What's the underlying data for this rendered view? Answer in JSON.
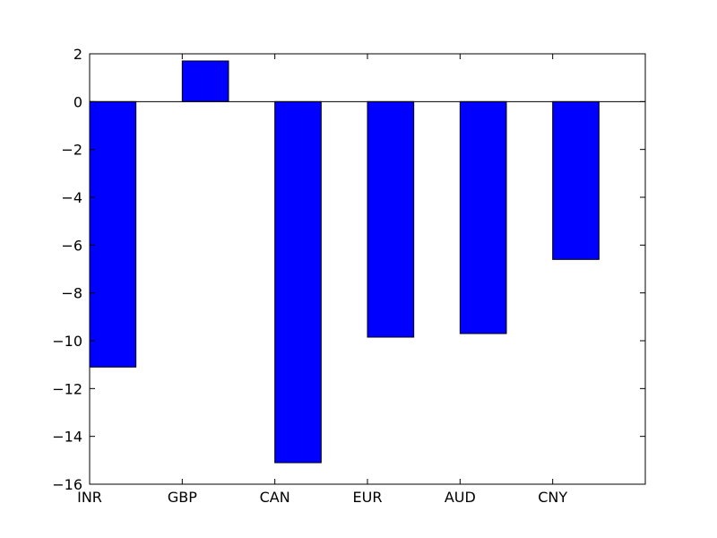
{
  "chart_data": {
    "type": "bar",
    "title": "",
    "xlabel": "",
    "ylabel": "",
    "categories": [
      "INR",
      "GBP",
      "CAN",
      "EUR",
      "AUD",
      "CNY"
    ],
    "values": [
      -11.1,
      1.7,
      -15.1,
      -9.85,
      -9.7,
      -6.6
    ],
    "ylim": [
      -16,
      2
    ],
    "xlim": [
      0,
      6
    ],
    "yticks": [
      2,
      0,
      -2,
      -4,
      -6,
      -8,
      -10,
      -12,
      -14,
      -16
    ],
    "ytick_labels": [
      "2",
      "0",
      "−2",
      "−4",
      "−6",
      "−8",
      "−10",
      "−12",
      "−14",
      "−16"
    ],
    "bar_color": "#0000ff",
    "edge_color": "#000000",
    "zero_line": true,
    "grid": false,
    "legend": "none"
  }
}
